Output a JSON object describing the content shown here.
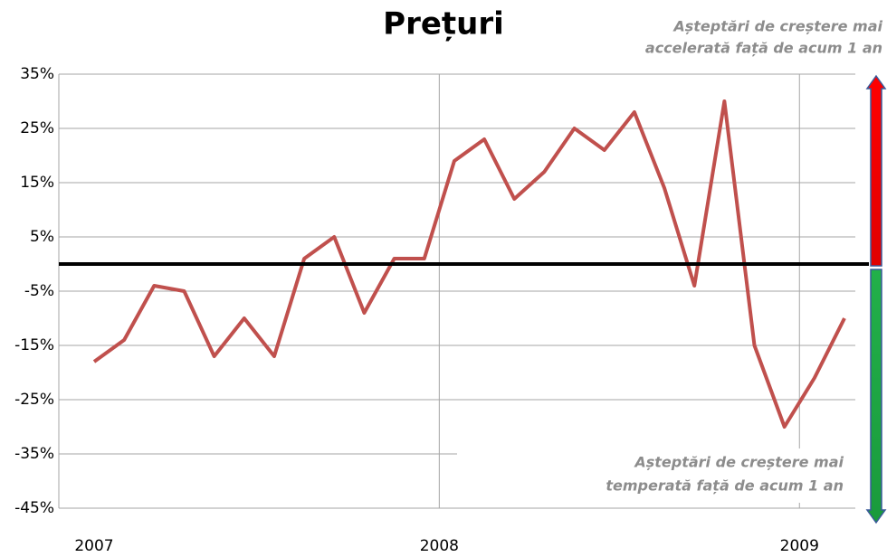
{
  "chart_data": {
    "type": "line",
    "title": "Prețuri",
    "annotations": [
      [
        "Așteptări de creștere mai",
        "accelerată față de acum 1 an"
      ],
      [
        "Așteptări de creștere mai",
        "temperată față de acum 1 an"
      ]
    ],
    "categories": [
      "2007",
      null,
      null,
      null,
      null,
      null,
      null,
      null,
      null,
      null,
      null,
      null,
      "2008",
      null,
      null,
      null,
      null,
      null,
      null,
      null,
      null,
      null,
      null,
      null,
      "2009",
      null
    ],
    "series": [
      {
        "name": "Prețuri",
        "color": "#c0504d",
        "values": [
          -18,
          -14,
          -4,
          -5,
          -17,
          -10,
          -17,
          1,
          5,
          -9,
          1,
          1,
          19,
          23,
          12,
          17,
          25,
          21,
          28,
          14,
          -4,
          30,
          -15,
          -30,
          -21,
          -10
        ]
      }
    ],
    "ylim": [
      -45,
      35
    ],
    "yticks": [
      {
        "value": -45,
        "label": "-45%"
      },
      {
        "value": -35,
        "label": "-35%"
      },
      {
        "value": -25,
        "label": "-25%"
      },
      {
        "value": -15,
        "label": "-15%"
      },
      {
        "value": -5,
        "label": "-5%"
      },
      {
        "value": 5,
        "label": "5%"
      },
      {
        "value": 15,
        "label": "15%"
      },
      {
        "value": 25,
        "label": "25%"
      },
      {
        "value": 35,
        "label": "35%"
      }
    ],
    "hline": 0,
    "grid": true
  }
}
